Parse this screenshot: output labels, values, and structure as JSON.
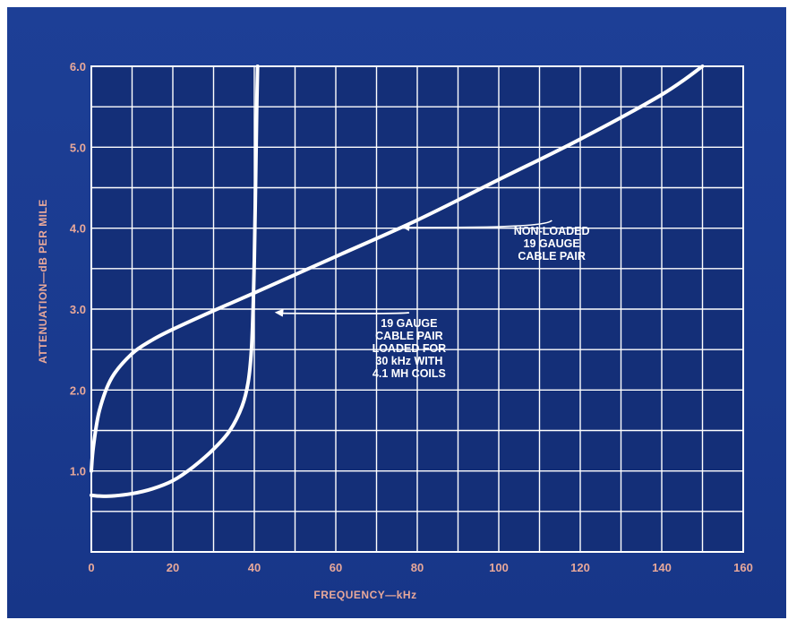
{
  "chart_data": {
    "type": "line",
    "title": "",
    "xlabel": "FREQUENCY—kHz",
    "ylabel": "ATTENUATION—dB PER MILE",
    "xlim": [
      0,
      160
    ],
    "ylim": [
      0,
      6.0
    ],
    "grid": true,
    "x_ticks": [
      0,
      20,
      40,
      60,
      80,
      100,
      120,
      140,
      160
    ],
    "x_tick_labels": [
      "0",
      "20",
      "40",
      "60",
      "80",
      "100",
      "120",
      "140",
      "160"
    ],
    "y_ticks": [
      1.0,
      2.0,
      3.0,
      4.0,
      5.0,
      6.0
    ],
    "y_tick_labels": [
      "1.0",
      "2.0",
      "3.0",
      "4.0",
      "5.0",
      "6.0"
    ],
    "x_minor_step": 10,
    "y_minor_step": 0.5,
    "series": [
      {
        "points": [
          [
            0,
            1.0
          ],
          [
            0.5,
            1.3
          ],
          [
            2,
            1.75
          ],
          [
            5,
            2.15
          ],
          [
            10,
            2.45
          ],
          [
            15,
            2.62
          ],
          [
            20,
            2.75
          ],
          [
            30,
            2.98
          ],
          [
            40,
            3.2
          ],
          [
            60,
            3.65
          ],
          [
            80,
            4.1
          ],
          [
            100,
            4.6
          ],
          [
            120,
            5.1
          ],
          [
            140,
            5.65
          ],
          [
            150,
            6.0
          ]
        ],
        "color": "#ffffff"
      },
      {
        "points": [
          [
            0,
            0.7
          ],
          [
            2,
            0.69
          ],
          [
            5,
            0.69
          ],
          [
            10,
            0.72
          ],
          [
            15,
            0.78
          ],
          [
            20,
            0.88
          ],
          [
            25,
            1.05
          ],
          [
            30,
            1.27
          ],
          [
            34,
            1.5
          ],
          [
            37,
            1.8
          ],
          [
            38.5,
            2.1
          ],
          [
            39.3,
            2.5
          ],
          [
            39.7,
            3.0
          ],
          [
            40,
            3.6
          ],
          [
            40.3,
            4.5
          ],
          [
            40.6,
            5.5
          ],
          [
            40.8,
            6.0
          ]
        ],
        "color": "#ffffff"
      }
    ],
    "annotations": [
      {
        "lines": [
          "NON-LOADED",
          "19 GAUGE",
          "CABLE PAIR"
        ],
        "text_x": 113,
        "text_y": 3.92,
        "arrow_to": [
          76,
          4.02
        ]
      },
      {
        "lines": [
          "19 GAUGE",
          "CABLE PAIR",
          "LOADED FOR",
          "30 kHz WITH",
          "4.1 MH COILS"
        ],
        "text_x": 78,
        "text_y": 2.78,
        "arrow_to": [
          45,
          2.96
        ]
      }
    ]
  }
}
